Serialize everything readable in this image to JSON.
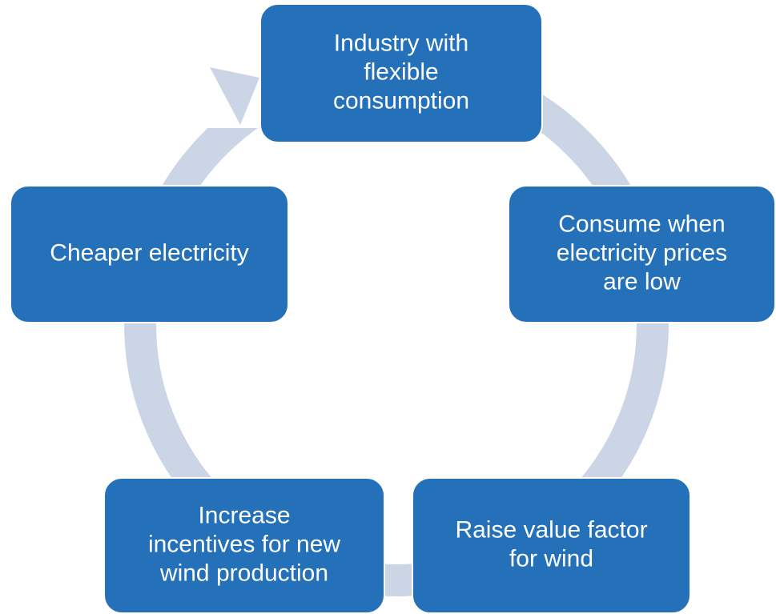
{
  "nodes": [
    {
      "lines": [
        "Industry with",
        "flexible",
        "consumption"
      ]
    },
    {
      "lines": [
        "Consume when",
        "electricity prices",
        "are low"
      ]
    },
    {
      "lines": [
        "Raise value factor",
        "for wind"
      ]
    },
    {
      "lines": [
        "Increase",
        "incentives for new",
        "wind production"
      ]
    },
    {
      "lines": [
        "Cheaper electricity"
      ]
    }
  ]
}
